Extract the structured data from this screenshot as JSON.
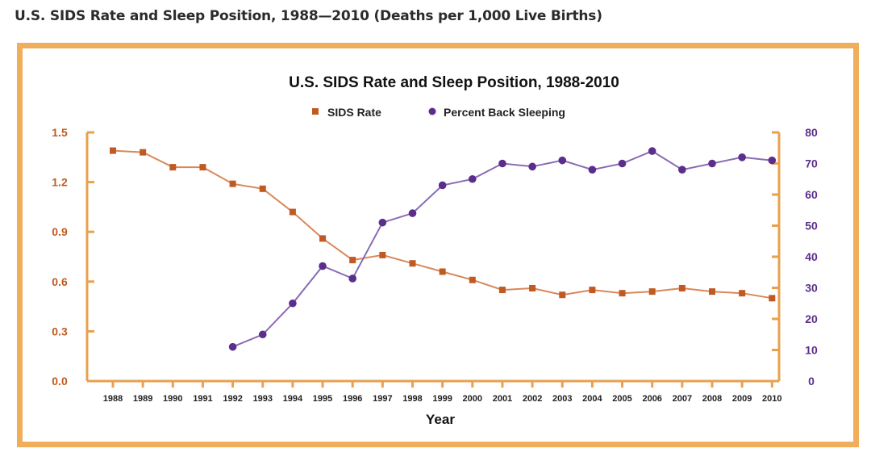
{
  "page": {
    "heading": "U.S. SIDS Rate and Sleep Position, 1988—2010 (Deaths per 1,000 Live Births)"
  },
  "colors": {
    "frame": "#f0ad5a",
    "axis": "#e8a14e",
    "sids": "#c05a22",
    "sids_line": "#d9875a",
    "back": "#5b2e8c",
    "back_line": "#8a6bb5"
  },
  "chart_data": {
    "type": "line",
    "title": "U.S. SIDS Rate and Sleep Position, 1988-2010",
    "xlabel": "Year",
    "ylabel_left": "",
    "ylabel_right": "",
    "categories": [
      "1988",
      "1989",
      "1990",
      "1991",
      "1992",
      "1993",
      "1994",
      "1995",
      "1996",
      "1997",
      "1998",
      "1999",
      "2000",
      "2001",
      "2002",
      "2003",
      "2004",
      "2005",
      "2006",
      "2007",
      "2008",
      "2009",
      "2010"
    ],
    "ylim_left": [
      0,
      1.5
    ],
    "yticks_left": [
      "0.0",
      "0.3",
      "0.6",
      "0.9",
      "1.2",
      "1.5"
    ],
    "ylim_right": [
      0,
      80
    ],
    "yticks_right": [
      "0",
      "10",
      "20",
      "30",
      "40",
      "50",
      "60",
      "70",
      "80"
    ],
    "legend_position": "top-center",
    "series": [
      {
        "name": "SIDS Rate",
        "axis": "left",
        "marker": "square",
        "values": [
          1.39,
          1.38,
          1.29,
          1.29,
          1.19,
          1.16,
          1.02,
          0.86,
          0.73,
          0.76,
          0.71,
          0.66,
          0.61,
          0.55,
          0.56,
          0.52,
          0.55,
          0.53,
          0.54,
          0.56,
          0.54,
          0.53,
          0.5
        ]
      },
      {
        "name": "Percent Back Sleeping",
        "axis": "right",
        "marker": "circle",
        "values": [
          null,
          null,
          null,
          null,
          11,
          15,
          25,
          37,
          33,
          51,
          54,
          63,
          65,
          70,
          69,
          71,
          68,
          70,
          74,
          68,
          70,
          72,
          71
        ]
      }
    ]
  }
}
